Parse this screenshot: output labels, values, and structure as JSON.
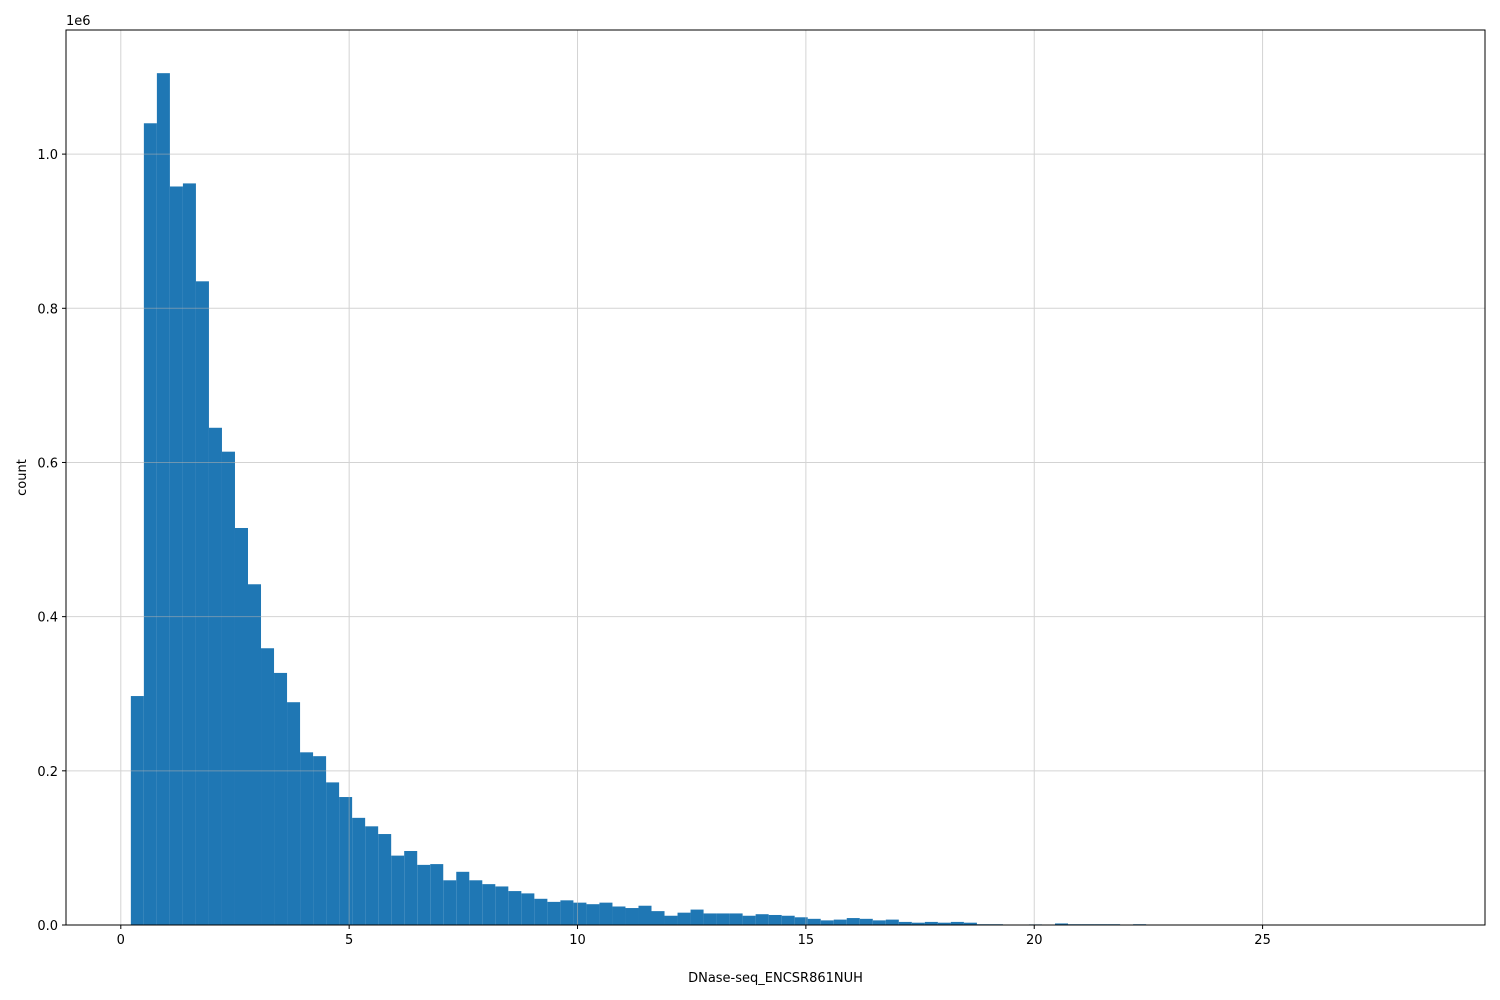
{
  "chart_data": {
    "type": "bar",
    "title": "",
    "xlabel": "DNase-seq_ENCSR861NUH",
    "ylabel": "count",
    "y_offset_label": "1e6",
    "xlim": [
      -1.2,
      29.87
    ],
    "ylim": [
      0,
      1161000
    ],
    "grid": true,
    "bar_color": "#1f77b4",
    "grid_color": "#b0b0b0",
    "bin_start": 0.22,
    "bin_width": 0.285,
    "x_ticks": [
      0,
      5,
      10,
      15,
      20,
      25
    ],
    "x_tick_labels": [
      "0",
      "5",
      "10",
      "15",
      "20",
      "25"
    ],
    "y_ticks": [
      0,
      200000,
      400000,
      600000,
      800000,
      1000000
    ],
    "y_tick_labels": [
      "0.0",
      "0.2",
      "0.4",
      "0.6",
      "0.8",
      "1.0"
    ],
    "values": [
      297000,
      1040000,
      1105000,
      958000,
      962000,
      835000,
      645000,
      614000,
      515000,
      442000,
      359000,
      327000,
      289000,
      224000,
      219000,
      185000,
      166000,
      139000,
      128000,
      118000,
      90000,
      96000,
      78000,
      79000,
      58000,
      69000,
      58000,
      53000,
      50000,
      44000,
      41000,
      34000,
      30000,
      32000,
      29000,
      27000,
      29000,
      24000,
      22000,
      25000,
      18000,
      12000,
      16000,
      20000,
      15000,
      15000,
      15000,
      12000,
      14000,
      13000,
      12000,
      10000,
      8000,
      6000,
      7000,
      9000,
      8000,
      6000,
      7000,
      4000,
      3000,
      4000,
      3000,
      4000,
      3000,
      1000,
      1000,
      500,
      500,
      800,
      200,
      2000,
      1000,
      1000,
      1000,
      1000,
      0,
      1000,
      0,
      0,
      0,
      0,
      0,
      0,
      0,
      0,
      0,
      0,
      0,
      0,
      0,
      0,
      0,
      0,
      0,
      0,
      0,
      0,
      0,
      0
    ]
  }
}
